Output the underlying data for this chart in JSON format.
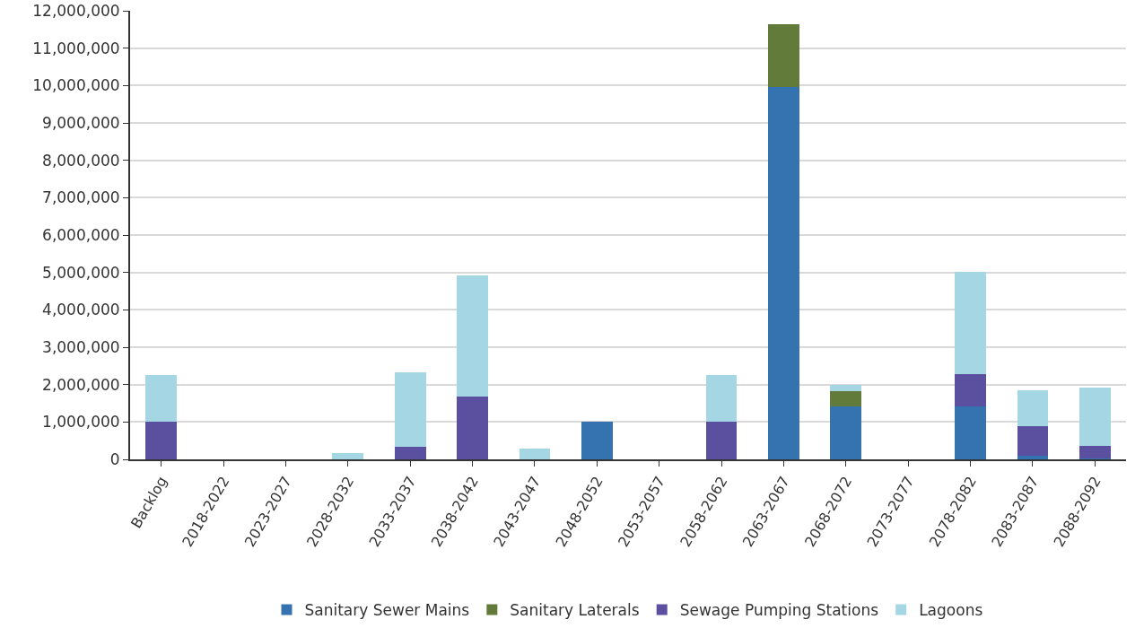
{
  "chart_data": {
    "type": "bar",
    "stacked": true,
    "grid": "y",
    "legend": "bottom",
    "categories": [
      "Backlog",
      "2018-2022",
      "2023-2027",
      "2028-2032",
      "2033-2037",
      "2038-2042",
      "2043-2047",
      "2048-2052",
      "2053-2057",
      "2058-2062",
      "2063-2067",
      "2068-2072",
      "2073-2077",
      "2078-2082",
      "2083-2087",
      "2088-2092"
    ],
    "series": [
      {
        "name": "Sanitary Sewer Mains",
        "color": "#3572b0",
        "values": [
          0,
          0,
          0,
          0,
          0,
          0,
          0,
          1000000,
          0,
          0,
          9950000,
          1420000,
          0,
          1420000,
          100000,
          20000
        ]
      },
      {
        "name": "Sanitary Laterals",
        "color": "#627a3a",
        "values": [
          0,
          0,
          0,
          0,
          0,
          0,
          0,
          0,
          0,
          0,
          1700000,
          400000,
          0,
          0,
          0,
          0
        ]
      },
      {
        "name": "Sewage Pumping Stations",
        "color": "#5b4f9f",
        "values": [
          1000000,
          0,
          0,
          0,
          330000,
          1670000,
          0,
          0,
          0,
          1000000,
          0,
          0,
          0,
          860000,
          780000,
          340000
        ]
      },
      {
        "name": "Lagoons",
        "color": "#a4d7e3",
        "values": [
          1250000,
          0,
          0,
          180000,
          1990000,
          3250000,
          300000,
          0,
          0,
          1250000,
          0,
          180000,
          0,
          2740000,
          970000,
          1560000
        ]
      }
    ],
    "ylim": [
      0,
      12000000
    ],
    "yticks": [
      {
        "value": 0,
        "label": "0"
      },
      {
        "value": 1000000,
        "label": "1,000,000"
      },
      {
        "value": 2000000,
        "label": "2,000,000"
      },
      {
        "value": 3000000,
        "label": "3,000,000"
      },
      {
        "value": 4000000,
        "label": "4,000,000"
      },
      {
        "value": 5000000,
        "label": "5,000,000"
      },
      {
        "value": 6000000,
        "label": "6,000,000"
      },
      {
        "value": 7000000,
        "label": "7,000,000"
      },
      {
        "value": 8000000,
        "label": "8,000,000"
      },
      {
        "value": 9000000,
        "label": "9,000,000"
      },
      {
        "value": 10000000,
        "label": "10,000,000"
      },
      {
        "value": 11000000,
        "label": "11,000,000"
      },
      {
        "value": 12000000,
        "label": "12,000,000"
      }
    ]
  }
}
